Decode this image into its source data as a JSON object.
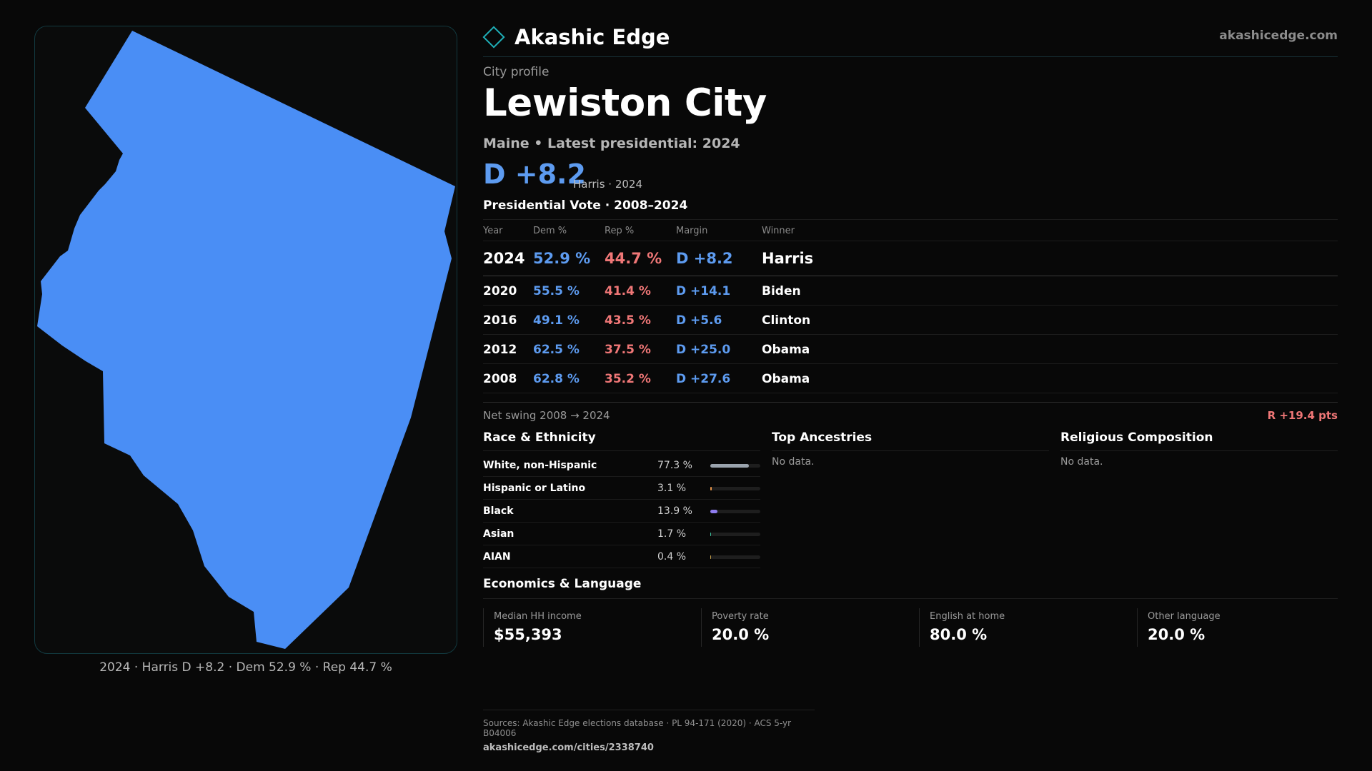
{
  "map": {
    "caption": "2024 · Harris D +8.2 · Dem 52.9 % · Rep 44.7 %",
    "fill_color": "#4a8ef5"
  },
  "header": {
    "brand_name": "Akashic Edge",
    "logo_icon": "diamond-outline-icon",
    "site": "akashicedge.com"
  },
  "profile": {
    "kicker": "City profile",
    "title": "Lewiston City",
    "subline": "Maine • Latest presidential: 2024",
    "margin": "D +8.2",
    "margin_note": "Harris · 2024"
  },
  "vote": {
    "title": "Presidential Vote · 2008–2024",
    "columns": [
      "Year",
      "Dem %",
      "Rep %",
      "Margin",
      "Winner"
    ],
    "rows": [
      {
        "year": "2024",
        "dem": "52.9 %",
        "rep": "44.7 %",
        "margin": "D +8.2",
        "winner": "Harris"
      },
      {
        "year": "2020",
        "dem": "55.5 %",
        "rep": "41.4 %",
        "margin": "D +14.1",
        "winner": "Biden"
      },
      {
        "year": "2016",
        "dem": "49.1 %",
        "rep": "43.5 %",
        "margin": "D +5.6",
        "winner": "Clinton"
      },
      {
        "year": "2012",
        "dem": "62.5 %",
        "rep": "37.5 %",
        "margin": "D +25.0",
        "winner": "Obama"
      },
      {
        "year": "2008",
        "dem": "62.8 %",
        "rep": "35.2 %",
        "margin": "D +27.6",
        "winner": "Obama"
      }
    ],
    "net_swing_label": "Net swing 2008 → 2024",
    "net_swing_value": "R +19.4 pts"
  },
  "race": {
    "title": "Race & Ethnicity",
    "rows": [
      {
        "name": "White, non-Hispanic",
        "pct": "77.3 %",
        "value": 77.3,
        "color": "#9aa3ad"
      },
      {
        "name": "Hispanic or Latino",
        "pct": "3.1 %",
        "value": 3.1,
        "color": "#e8954a"
      },
      {
        "name": "Black",
        "pct": "13.9 %",
        "value": 13.9,
        "color": "#8f7df0"
      },
      {
        "name": "Asian",
        "pct": "1.7 %",
        "value": 1.7,
        "color": "#3cc5a0"
      },
      {
        "name": "AIAN",
        "pct": "0.4 %",
        "value": 0.4,
        "color": "#c9a24a"
      }
    ]
  },
  "ancestries": {
    "title": "Top Ancestries",
    "empty": "No data."
  },
  "religion": {
    "title": "Religious Composition",
    "empty": "No data."
  },
  "economics": {
    "title": "Economics & Language",
    "cards": [
      {
        "label": "Median HH income",
        "value": "$55,393"
      },
      {
        "label": "Poverty rate",
        "value": "20.0 %"
      },
      {
        "label": "English at home",
        "value": "80.0 %"
      },
      {
        "label": "Other language",
        "value": "20.0 %"
      }
    ]
  },
  "footer": {
    "sources": "Sources: Akashic Edge elections database · PL 94-171 (2020) · ACS 5-yr B04006",
    "url": "akashicedge.com/cities/2338740"
  }
}
